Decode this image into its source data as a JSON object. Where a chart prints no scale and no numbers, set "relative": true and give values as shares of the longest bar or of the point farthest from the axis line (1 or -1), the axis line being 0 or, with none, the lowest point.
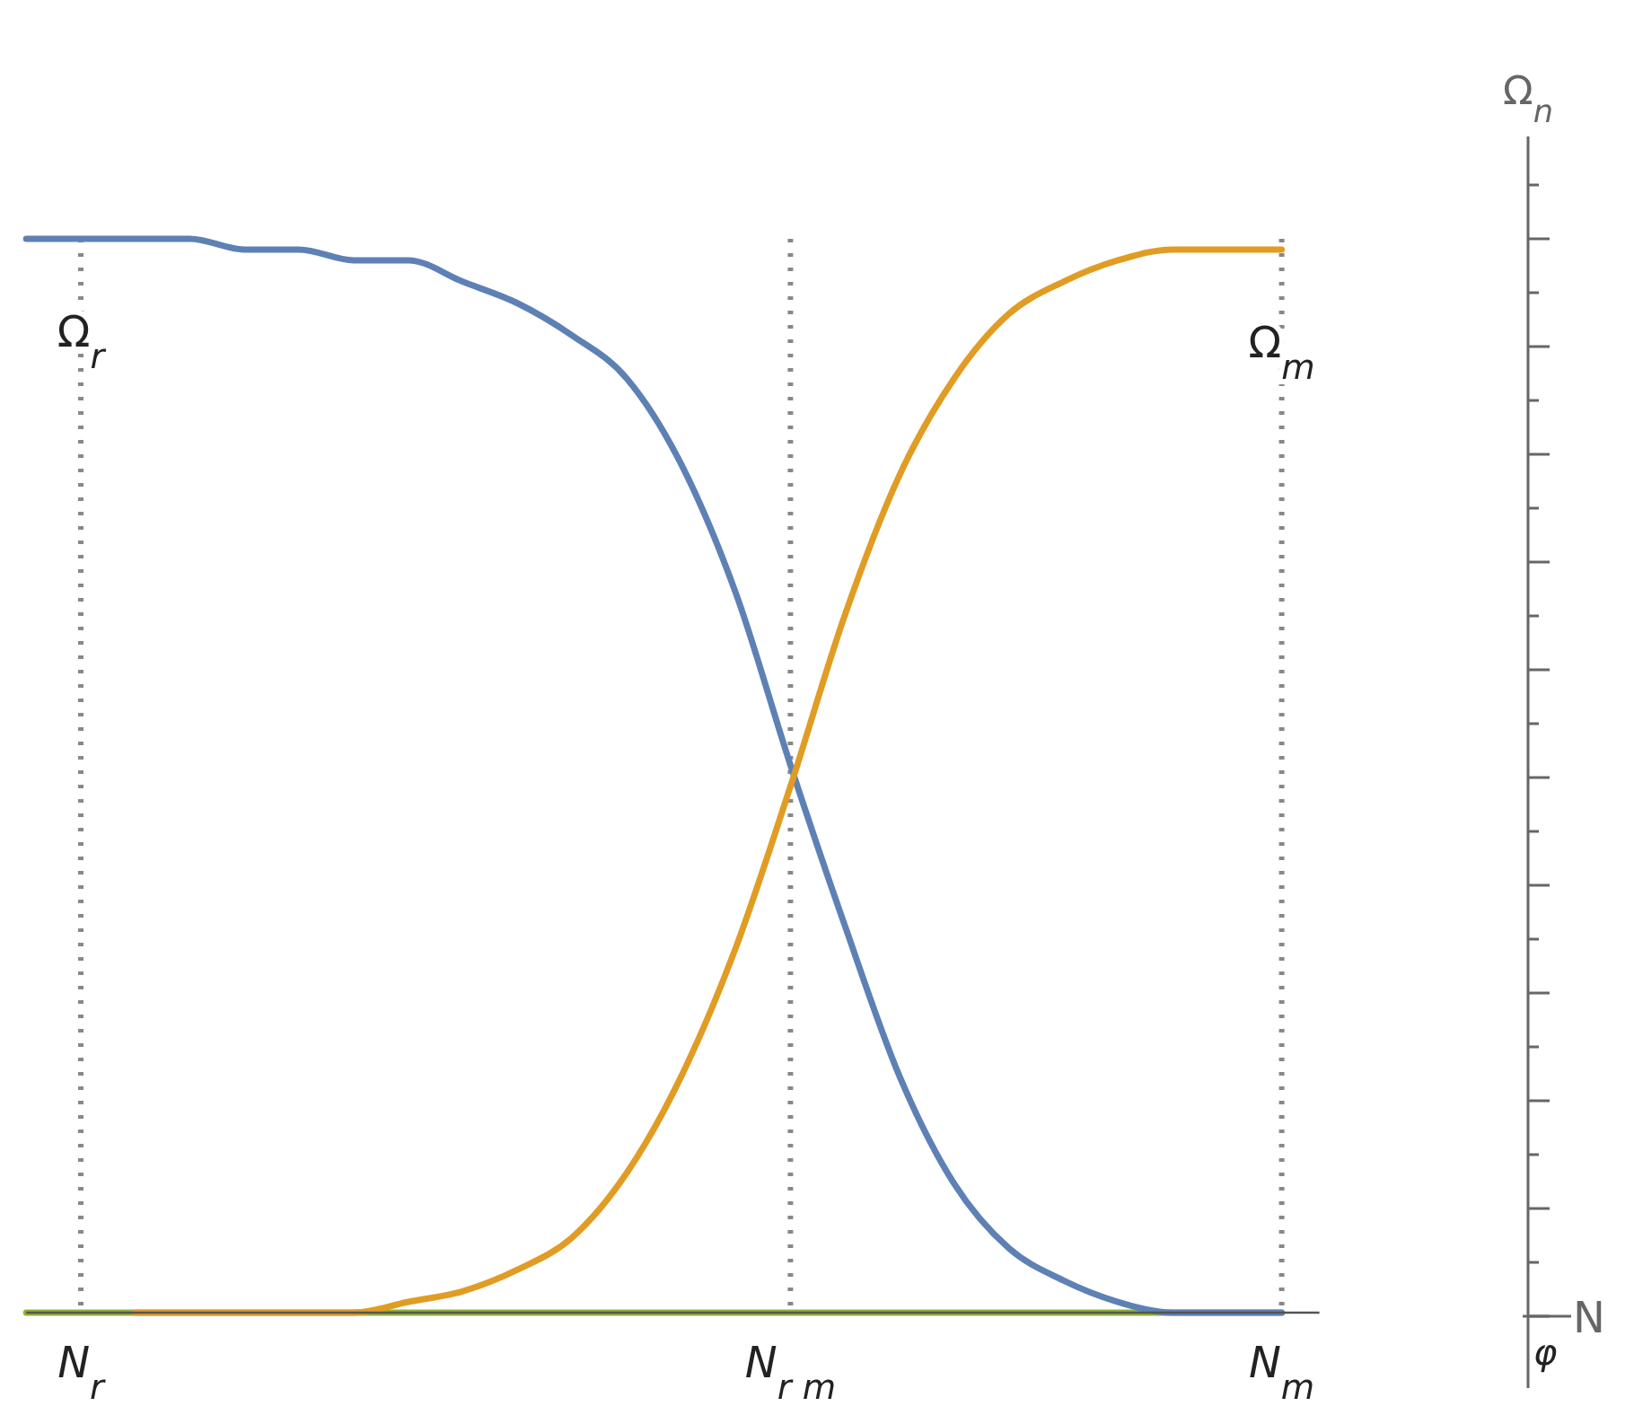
{
  "chart_data": {
    "type": "line",
    "relative": true,
    "categories": [
      null,
      "N$_{r}$",
      null,
      null,
      null,
      null,
      null,
      null,
      null,
      null,
      null,
      null,
      null,
      null,
      "N$_{r m}$",
      null,
      null,
      null,
      null,
      null,
      null,
      null,
      null,
      "N$_{m}$"
    ],
    "series": [
      {
        "color": "#8fb131",
        "values": [
          0,
          0,
          0,
          0,
          0,
          0,
          0,
          0,
          0,
          0,
          0,
          0,
          0,
          0,
          0,
          0,
          0,
          0,
          0,
          0,
          0,
          0,
          0,
          0
        ]
      },
      {
        "color": "#5e81b5",
        "values": [
          1.0,
          1.0,
          1.0,
          1.0,
          0.99,
          0.99,
          0.98,
          0.98,
          0.96,
          0.94,
          0.91,
          0.87,
          0.79,
          0.67,
          0.51,
          0.36,
          0.22,
          0.12,
          0.06,
          0.03,
          0.01,
          0.0,
          0.0,
          0.0
        ]
      },
      {
        "color": "#e19c24",
        "values": [
          null,
          null,
          0.0,
          0.0,
          0.0,
          0.0,
          0.0,
          0.01,
          0.02,
          0.04,
          0.07,
          0.13,
          0.22,
          0.34,
          0.49,
          0.65,
          0.78,
          0.87,
          0.93,
          0.96,
          0.98,
          0.99,
          0.99,
          0.99
        ]
      }
    ],
    "ref_lines": [
      {
        "axis": "x",
        "value": "N$_{r}$",
        "color": "#888888",
        "line_style": "dotted"
      },
      {
        "axis": "x",
        "value": "N$_{r m}$",
        "color": "#888888",
        "line_style": "dotted"
      },
      {
        "axis": "x",
        "value": "N$_{m}$",
        "color": "#888888",
        "line_style": "dotted"
      }
    ],
    "annotations": [
      {
        "text": "Ω$_{r}$",
        "x": "N$_{r}$",
        "y": 1.0
      },
      {
        "text": "Ω$_{m}$",
        "x": "N$_{m}$",
        "y": 0.99
      },
      "Ω$_{n}$",
      "N",
      "φ"
    ],
    "grid": false,
    "marker": "none",
    "line_style": "solid"
  }
}
